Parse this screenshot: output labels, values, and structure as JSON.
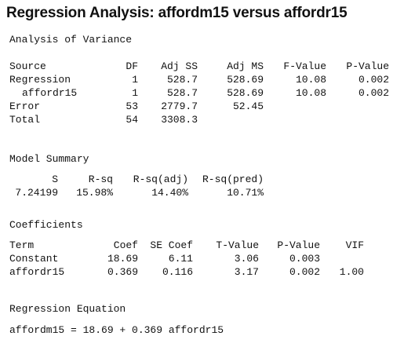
{
  "title": "Regression Analysis: affordm15 versus affordr15",
  "anova": {
    "heading": "Analysis of Variance",
    "headers": [
      "Source",
      "DF",
      "Adj SS",
      "Adj MS",
      "F-Value",
      "P-Value"
    ],
    "rows": [
      {
        "source": "Regression",
        "df": "1",
        "adj_ss": "528.7",
        "adj_ms": "528.69",
        "f": "10.08",
        "p": "0.002"
      },
      {
        "source": "affordr15",
        "df": "1",
        "adj_ss": "528.7",
        "adj_ms": "528.69",
        "f": "10.08",
        "p": "0.002"
      },
      {
        "source": "Error",
        "df": "53",
        "adj_ss": "2779.7",
        "adj_ms": "52.45",
        "f": "",
        "p": ""
      },
      {
        "source": "Total",
        "df": "54",
        "adj_ss": "3308.3",
        "adj_ms": "",
        "f": "",
        "p": ""
      }
    ]
  },
  "model_summary": {
    "heading": "Model Summary",
    "headers": [
      "S",
      "R-sq",
      "R-sq(adj)",
      "R-sq(pred)"
    ],
    "values": [
      "7.24199",
      "15.98%",
      "14.40%",
      "10.71%"
    ]
  },
  "coefficients": {
    "heading": "Coefficients",
    "headers": [
      "Term",
      "Coef",
      "SE Coef",
      "T-Value",
      "P-Value",
      "VIF"
    ],
    "rows": [
      {
        "term": "Constant",
        "coef": "18.69",
        "se": "6.11",
        "t": "3.06",
        "p": "0.003",
        "vif": ""
      },
      {
        "term": "affordr15",
        "coef": "0.369",
        "se": "0.116",
        "t": "3.17",
        "p": "0.002",
        "vif": "1.00"
      }
    ]
  },
  "regression_equation": {
    "heading": "Regression Equation",
    "equation": "affordm15 = 18.69 + 0.369 affordr15"
  }
}
